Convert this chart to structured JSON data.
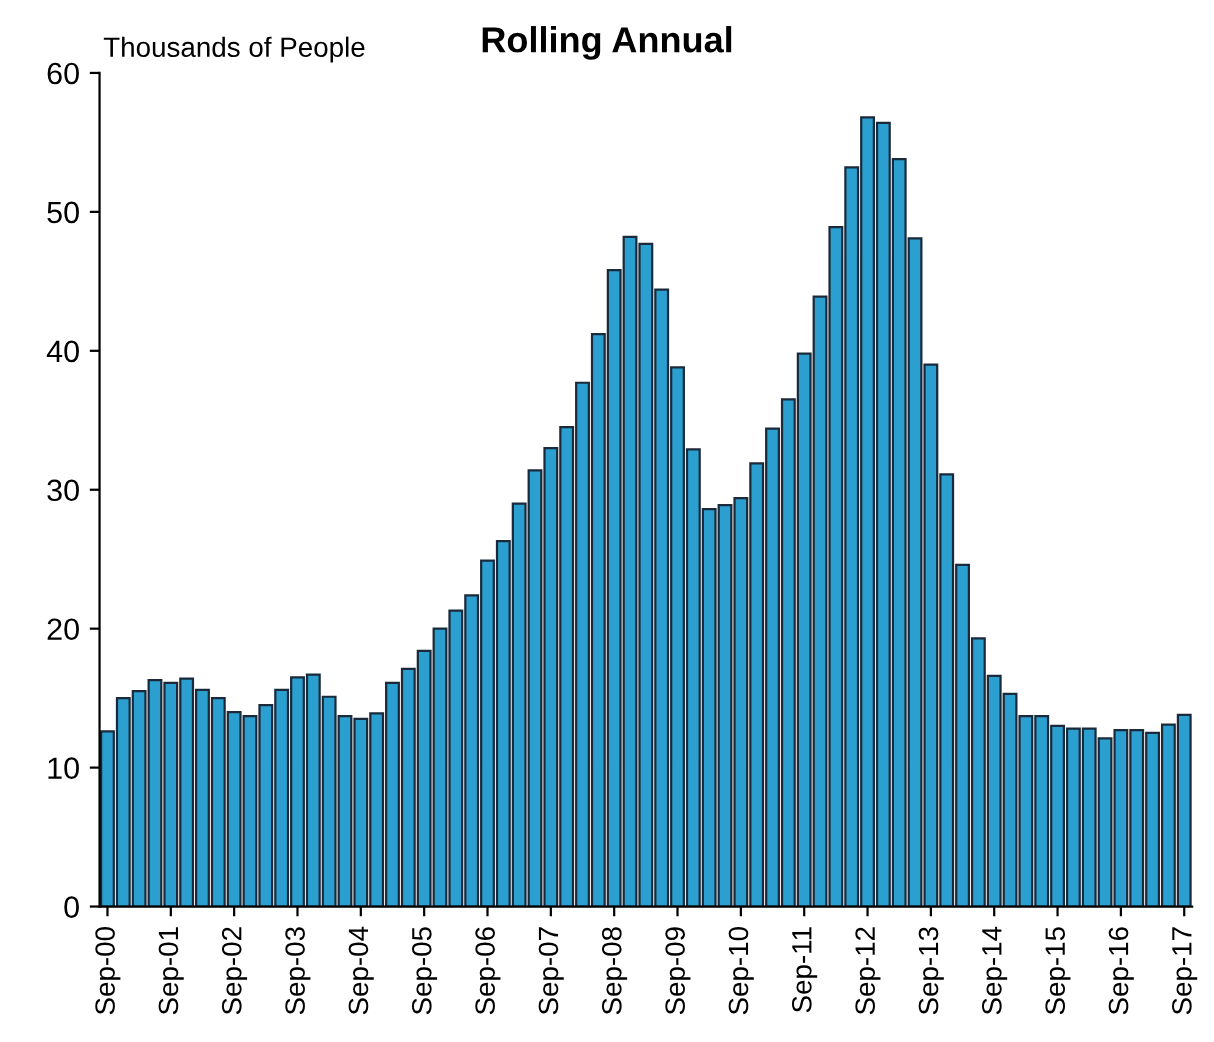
{
  "chart_data": {
    "type": "bar",
    "title": "Rolling Annual",
    "ylabel": "Thousands of People",
    "categories": [
      "Sep-00",
      null,
      null,
      null,
      "Sep-01",
      null,
      null,
      null,
      "Sep-02",
      null,
      null,
      null,
      "Sep-03",
      null,
      null,
      null,
      "Sep-04",
      null,
      null,
      null,
      "Sep-05",
      null,
      null,
      null,
      "Sep-06",
      null,
      null,
      null,
      "Sep-07",
      null,
      null,
      null,
      "Sep-08",
      null,
      null,
      null,
      "Sep-09",
      null,
      null,
      null,
      "Sep-10",
      null,
      null,
      null,
      "Sep-11",
      null,
      null,
      null,
      "Sep-12",
      null,
      null,
      null,
      "Sep-13",
      null,
      null,
      null,
      "Sep-14",
      null,
      null,
      null,
      "Sep-15",
      null,
      null,
      null,
      "Sep-16",
      null,
      null,
      null,
      "Sep-17"
    ],
    "values": [
      12.6,
      15.0,
      15.5,
      16.3,
      16.1,
      16.4,
      15.6,
      15.0,
      14.0,
      13.7,
      14.5,
      15.6,
      16.5,
      16.7,
      15.1,
      13.7,
      13.5,
      13.9,
      16.1,
      17.1,
      18.4,
      20.0,
      21.3,
      22.4,
      24.9,
      26.3,
      29.0,
      31.4,
      33.0,
      34.5,
      37.7,
      41.2,
      45.8,
      48.2,
      47.7,
      44.4,
      38.8,
      32.9,
      28.6,
      28.9,
      29.4,
      31.9,
      34.4,
      36.5,
      39.8,
      43.9,
      48.9,
      53.2,
      56.8,
      56.4,
      53.8,
      48.1,
      39.0,
      31.1,
      24.6,
      19.3,
      16.6,
      15.3,
      13.7,
      13.7,
      13.0,
      12.8,
      12.8,
      12.1,
      12.7,
      12.7,
      12.5,
      13.1,
      13.8
    ],
    "color": "#2a9fd0",
    "ylim": [
      0,
      60
    ],
    "yticks": [
      0,
      10,
      20,
      30,
      40,
      50,
      60
    ],
    "grid": false
  }
}
